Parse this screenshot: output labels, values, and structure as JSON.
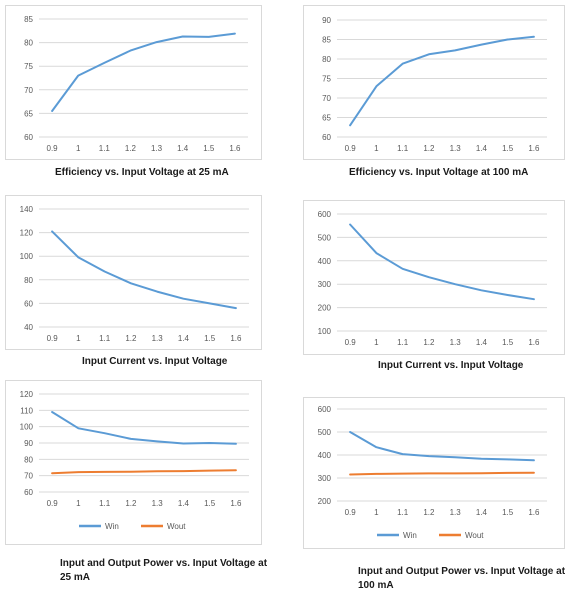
{
  "charts": [
    {
      "caption": "Efficiency vs. Input Voltage at 25 mA",
      "chart_data": {
        "type": "line",
        "x": [
          "0.9",
          "1",
          "1.1",
          "1.2",
          "1.3",
          "1.4",
          "1.5",
          "1.6"
        ],
        "series": [
          {
            "values": [
              65.5,
              73.0,
              75.7,
              78.3,
              80.1,
              81.3,
              81.2,
              81.9
            ],
            "color": "#5b9bd5"
          }
        ],
        "ylim": [
          60,
          85
        ],
        "yticks": [
          60,
          65,
          70,
          75,
          80,
          85
        ],
        "grid": true,
        "legend": false
      }
    },
    {
      "caption": "Efficiency vs. Input Voltage at 100 mA",
      "chart_data": {
        "type": "line",
        "x": [
          "0.9",
          "1",
          "1.1",
          "1.2",
          "1.3",
          "1.4",
          "1.5",
          "1.6"
        ],
        "series": [
          {
            "values": [
              63.0,
              73.0,
              78.8,
              81.2,
              82.2,
              83.7,
              85.0,
              85.7
            ],
            "color": "#5b9bd5"
          }
        ],
        "ylim": [
          60,
          90
        ],
        "yticks": [
          60,
          65,
          70,
          75,
          80,
          85,
          90
        ],
        "grid": true,
        "legend": false
      }
    },
    {
      "caption": "Input Current vs. Input Voltage",
      "chart_data": {
        "type": "line",
        "x": [
          "0.9",
          "1",
          "1.1",
          "1.2",
          "1.3",
          "1.4",
          "1.5",
          "1.6"
        ],
        "series": [
          {
            "values": [
              121,
              99,
              87,
              77,
              70,
              64,
              60,
              56
            ],
            "color": "#5b9bd5"
          }
        ],
        "ylim": [
          40,
          140
        ],
        "yticks": [
          40,
          60,
          80,
          100,
          120,
          140
        ],
        "grid": true,
        "legend": false
      }
    },
    {
      "caption": "Input Current vs. Input Voltage",
      "chart_data": {
        "type": "line",
        "x": [
          "0.9",
          "1",
          "1.1",
          "1.2",
          "1.3",
          "1.4",
          "1.5",
          "1.6"
        ],
        "series": [
          {
            "values": [
              555,
              433,
              366,
              330,
              300,
              274,
              254,
              236
            ],
            "color": "#5b9bd5"
          }
        ],
        "ylim": [
          100,
          600
        ],
        "yticks": [
          100,
          200,
          300,
          400,
          500,
          600
        ],
        "grid": true,
        "legend": false
      }
    },
    {
      "caption": "Input and Output Power vs. Input Voltage at 25 mA",
      "chart_data": {
        "type": "line",
        "x": [
          "0.9",
          "1",
          "1.1",
          "1.2",
          "1.3",
          "1.4",
          "1.5",
          "1.6"
        ],
        "series": [
          {
            "name": "Win",
            "values": [
              109,
              99,
              96,
              92.5,
              91,
              89.7,
              90,
              89.5
            ],
            "color": "#5b9bd5"
          },
          {
            "name": "Wout",
            "values": [
              71.5,
              72.2,
              72.3,
              72.4,
              72.7,
              72.8,
              73.1,
              73.3
            ],
            "color": "#ed7d31"
          }
        ],
        "ylim": [
          60,
          120
        ],
        "yticks": [
          60,
          70,
          80,
          90,
          100,
          110,
          120
        ],
        "grid": true,
        "legend": "bottom"
      }
    },
    {
      "caption": "Input and Output Power vs. Input Voltage at 100 mA",
      "chart_data": {
        "type": "line",
        "x": [
          "0.9",
          "1",
          "1.1",
          "1.2",
          "1.3",
          "1.4",
          "1.5",
          "1.6"
        ],
        "series": [
          {
            "name": "Win",
            "values": [
              500,
              434,
              404,
              395,
              390,
              384,
              381,
              377
            ],
            "color": "#5b9bd5"
          },
          {
            "name": "Wout",
            "values": [
              315,
              318,
              319,
              320,
              320,
              321,
              322,
              323
            ],
            "color": "#ed7d31"
          }
        ],
        "ylim": [
          200,
          600
        ],
        "yticks": [
          200,
          300,
          400,
          500,
          600
        ],
        "grid": true,
        "legend": "bottom"
      }
    }
  ]
}
